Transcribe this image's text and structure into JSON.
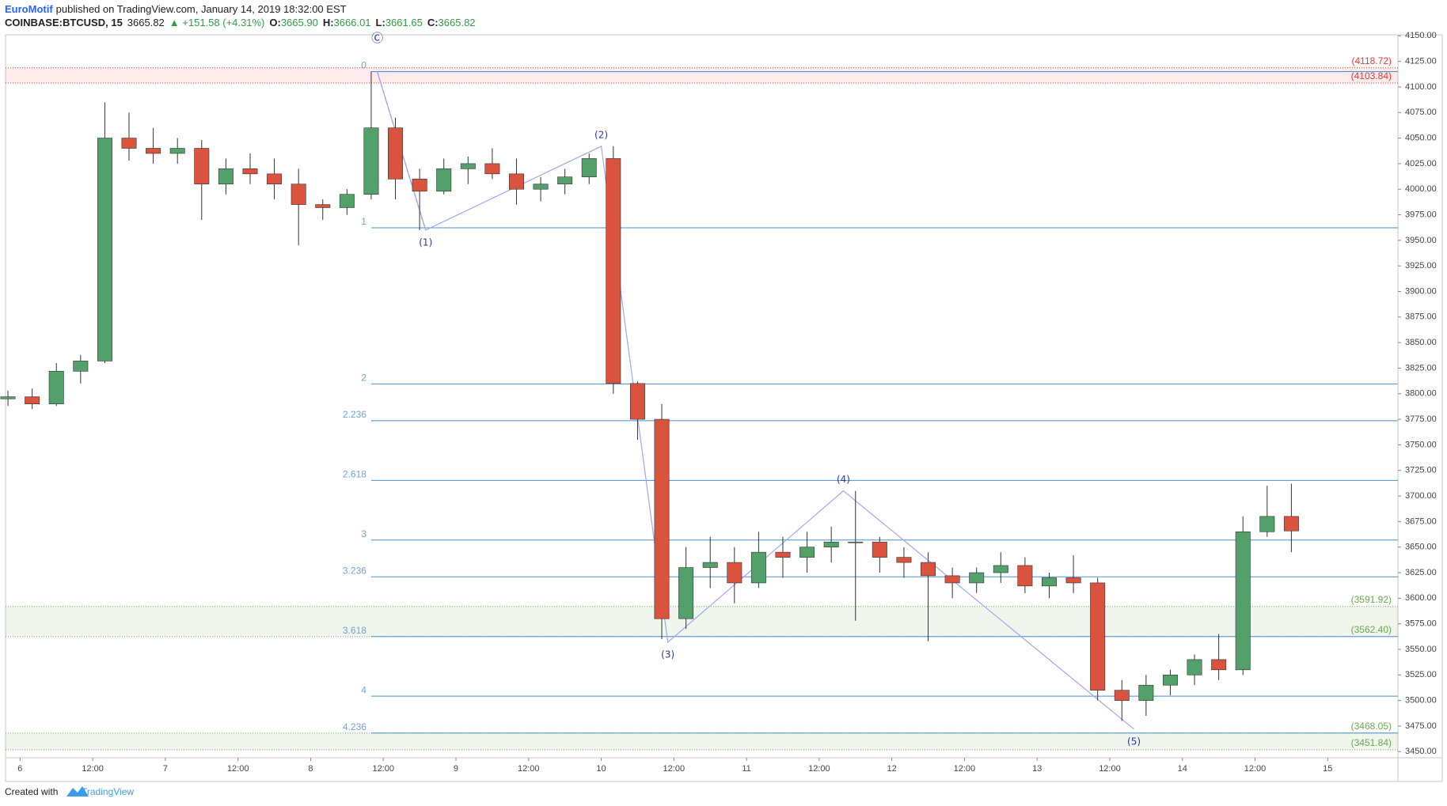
{
  "header": {
    "author": "EuroMotif",
    "published": "published on TradingView.com, January 14, 2019 18:32:00 EST",
    "symbol": "COINBASE:BTCUSD, 15",
    "last": "3665.82",
    "change": "▲ +151.58 (+4.31%)",
    "ohlc": [
      {
        "label": "O:",
        "value": "3665.90"
      },
      {
        "label": "H:",
        "value": "3666.01"
      },
      {
        "label": "L:",
        "value": "3661.65"
      },
      {
        "label": "C:",
        "value": "3665.82"
      }
    ]
  },
  "footer": {
    "text": "Created with",
    "brand": "TradingView"
  },
  "chart_data": {
    "type": "candlestick",
    "up_color": "#53a06b",
    "down_color": "#d9533f",
    "xlim": [
      -2.4,
      227.6
    ],
    "ylim": [
      3444,
      4151
    ],
    "xticks": [
      {
        "value": 0,
        "label": "6"
      },
      {
        "value": 12,
        "label": "12:00"
      },
      {
        "value": 24,
        "label": "7"
      },
      {
        "value": 36,
        "label": "12:00"
      },
      {
        "value": 48,
        "label": "8"
      },
      {
        "value": 60,
        "label": "12:00"
      },
      {
        "value": 72,
        "label": "9"
      },
      {
        "value": 84,
        "label": "12:00"
      },
      {
        "value": 96,
        "label": "10"
      },
      {
        "value": 108,
        "label": "12:00"
      },
      {
        "value": 120,
        "label": "11"
      },
      {
        "value": 132,
        "label": "12:00"
      },
      {
        "value": 144,
        "label": "12"
      },
      {
        "value": 156,
        "label": "12:00"
      },
      {
        "value": 168,
        "label": "13"
      },
      {
        "value": 180,
        "label": "12:00"
      },
      {
        "value": 192,
        "label": "14"
      },
      {
        "value": 204,
        "label": "12:00"
      },
      {
        "value": 216,
        "label": "15"
      }
    ],
    "yticks": [
      {
        "value": 3450,
        "label": "3450.00"
      },
      {
        "value": 3475,
        "label": "3475.00"
      },
      {
        "value": 3500,
        "label": "3500.00"
      },
      {
        "value": 3525,
        "label": "3525.00"
      },
      {
        "value": 3550,
        "label": "3550.00"
      },
      {
        "value": 3575,
        "label": "3575.00"
      },
      {
        "value": 3600,
        "label": "3600.00"
      },
      {
        "value": 3625,
        "label": "3625.00"
      },
      {
        "value": 3650,
        "label": "3650.00"
      },
      {
        "value": 3675,
        "label": "3675.00"
      },
      {
        "value": 3700,
        "label": "3700.00"
      },
      {
        "value": 3725,
        "label": "3725.00"
      },
      {
        "value": 3750,
        "label": "3750.00"
      },
      {
        "value": 3775,
        "label": "3775.00"
      },
      {
        "value": 3800,
        "label": "3800.00"
      },
      {
        "value": 3825,
        "label": "3825.00"
      },
      {
        "value": 3850,
        "label": "3850.00"
      },
      {
        "value": 3875,
        "label": "3875.00"
      },
      {
        "value": 3900,
        "label": "3900.00"
      },
      {
        "value": 3925,
        "label": "3925.00"
      },
      {
        "value": 3950,
        "label": "3950.00"
      },
      {
        "value": 3975,
        "label": "3975.00"
      },
      {
        "value": 4000,
        "label": "4000.00"
      },
      {
        "value": 4025,
        "label": "4025.00"
      },
      {
        "value": 4050,
        "label": "4050.00"
      },
      {
        "value": 4075,
        "label": "4075.00"
      },
      {
        "value": 4100,
        "label": "4100.00"
      },
      {
        "value": 4125,
        "label": "4125.00"
      },
      {
        "value": 4150,
        "label": "4150.00"
      }
    ],
    "candles": {
      "x": [
        -2,
        2,
        6,
        10,
        14,
        18,
        22,
        26,
        30,
        34,
        38,
        42,
        46,
        50,
        54,
        58,
        62,
        66,
        70,
        74,
        78,
        82,
        86,
        90,
        94,
        98,
        102,
        106,
        110,
        114,
        118,
        122,
        126,
        130,
        134,
        138,
        142,
        146,
        150,
        154,
        158,
        162,
        166,
        170,
        174,
        178,
        182,
        186,
        190,
        194,
        198,
        202,
        206,
        210
      ],
      "open": [
        3795,
        3797,
        3790,
        3822,
        3832,
        4050,
        4040,
        4035,
        4040,
        4005,
        4020,
        4015,
        4005,
        3985,
        3982,
        3995,
        4060,
        4010,
        3998,
        4020,
        4025,
        4015,
        4000,
        4005,
        4012,
        4030,
        3810,
        3775,
        3580,
        3630,
        3635,
        3615,
        3645,
        3640,
        3650,
        3655,
        3655,
        3640,
        3635,
        3622,
        3615,
        3625,
        3632,
        3612,
        3620,
        3615,
        3510,
        3500,
        3515,
        3525,
        3540,
        3530,
        3665,
        3680
      ],
      "high": [
        3803,
        3805,
        3830,
        3838,
        4085,
        4075,
        4060,
        4050,
        4048,
        4030,
        4035,
        4030,
        4020,
        3990,
        4000,
        4115,
        4070,
        4020,
        4030,
        4032,
        4040,
        4030,
        4012,
        4020,
        4035,
        4042,
        3812,
        3790,
        3650,
        3660,
        3650,
        3665,
        3660,
        3665,
        3670,
        3705,
        3660,
        3650,
        3645,
        3630,
        3630,
        3645,
        3640,
        3625,
        3642,
        3620,
        3520,
        3525,
        3530,
        3545,
        3565,
        3680,
        3710,
        3712
      ],
      "low": [
        3788,
        3785,
        3788,
        3810,
        3830,
        4028,
        4025,
        4025,
        3970,
        3995,
        4005,
        3990,
        3945,
        3970,
        3975,
        3990,
        3990,
        3960,
        3995,
        4005,
        4010,
        3985,
        3988,
        3995,
        4005,
        3800,
        3755,
        3560,
        3570,
        3610,
        3595,
        3610,
        3620,
        3625,
        3635,
        3578,
        3625,
        3620,
        3558,
        3600,
        3605,
        3615,
        3605,
        3600,
        3605,
        3500,
        3480,
        3485,
        3505,
        3515,
        3520,
        3525,
        3660,
        3645
      ],
      "close": [
        3797,
        3790,
        3822,
        3832,
        4050,
        4040,
        4035,
        4040,
        4005,
        4020,
        4015,
        4005,
        3985,
        3982,
        3995,
        4060,
        4010,
        3998,
        4020,
        4025,
        4015,
        4000,
        4005,
        4012,
        4030,
        3810,
        3775,
        3580,
        3630,
        3635,
        3615,
        3645,
        3640,
        3650,
        3655,
        3655,
        3640,
        3635,
        3622,
        3615,
        3625,
        3632,
        3612,
        3620,
        3615,
        3510,
        3500,
        3515,
        3525,
        3540,
        3530,
        3665,
        3680,
        3665.82
      ]
    },
    "fib": {
      "x": 58,
      "color": "#4a8fd0",
      "levels": [
        0,
        1,
        2,
        2.236,
        2.618,
        3,
        3.236,
        3.618,
        4,
        4.236
      ],
      "prices": [
        4115,
        3962.3,
        3809.6,
        3773.6,
        3715.2,
        3656.9,
        3620.9,
        3562.5,
        3504.2,
        3468.2
      ]
    },
    "zones": [
      {
        "low": 4103.84,
        "high": 4118.72,
        "low_label": "(4103.84)",
        "high_label": "(4118.72)",
        "color": "#e53935"
      },
      {
        "low": 3562.4,
        "high": 3591.92,
        "low_label": "(3562.40)",
        "high_label": "(3591.92)",
        "color": "#6aa84f"
      },
      {
        "low": 3451.84,
        "high": 3468.05,
        "low_label": "(3451.84)",
        "high_label": "(3468.05)",
        "color": "#6aa84f"
      }
    ],
    "waves": {
      "color": "#9fa8f0",
      "labels": [
        "Ⓒ",
        "(1)",
        "(2)",
        "(3)",
        "(4)",
        "(5)"
      ],
      "x": [
        59,
        67,
        96,
        107,
        136,
        184
      ],
      "y": [
        4115,
        3960,
        4042,
        3557,
        3705,
        3472
      ]
    }
  }
}
